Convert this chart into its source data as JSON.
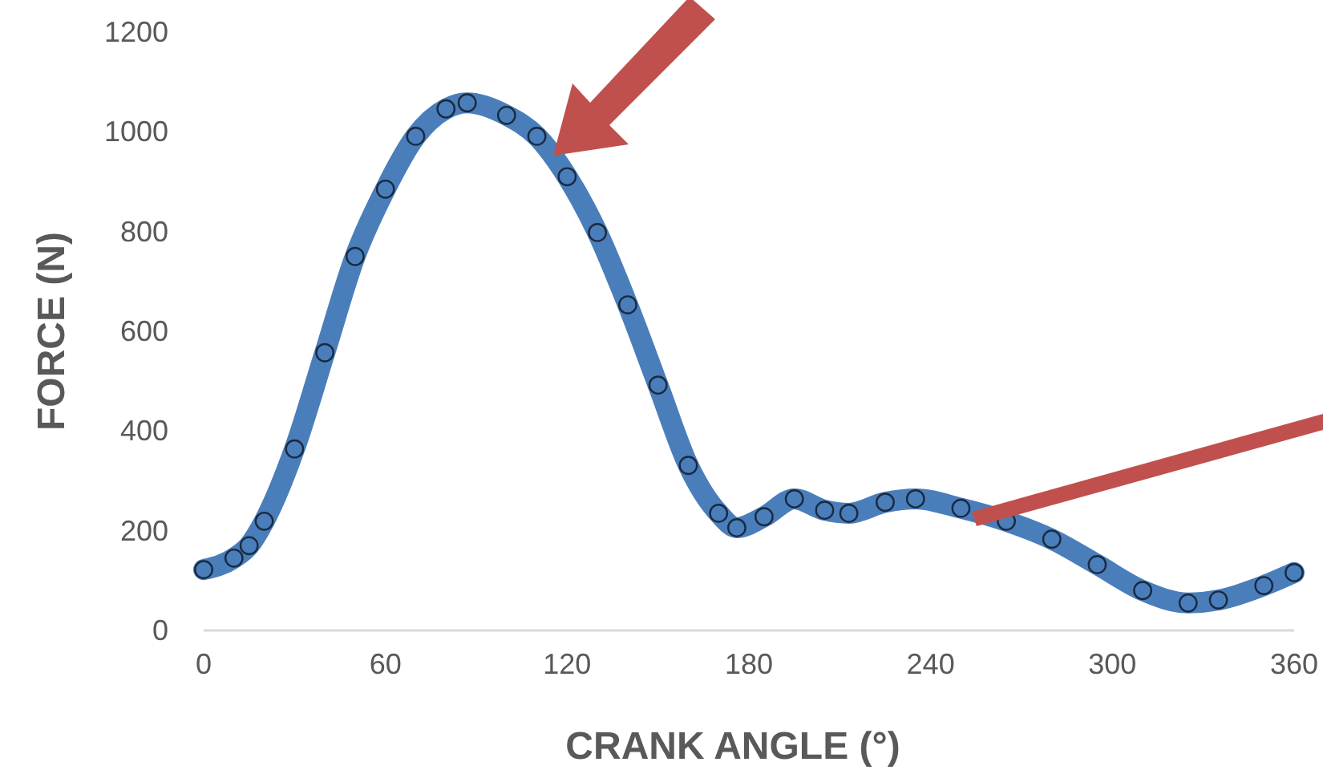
{
  "chart_data": {
    "type": "line",
    "xlabel": "CRANK ANGLE (°)",
    "ylabel": "FORCE (N)",
    "xlim": [
      0,
      360
    ],
    "xticks": [
      0,
      60,
      120,
      180,
      240,
      300,
      360
    ],
    "ylim": [
      0,
      1200
    ],
    "yticks": [
      0,
      200,
      400,
      600,
      800,
      1000,
      1200
    ],
    "grid": false,
    "marker": "circle",
    "series": [
      {
        "color": "#4a7ebb",
        "x": [
          0,
          10,
          15,
          20,
          30,
          40,
          50,
          60,
          70,
          80,
          87,
          100,
          110,
          120,
          130,
          140,
          150,
          160,
          170,
          176,
          185,
          195,
          205,
          213,
          225,
          235,
          250,
          265,
          280,
          295,
          310,
          325,
          335,
          350,
          360
        ],
        "values": [
          122,
          145,
          170,
          219,
          364,
          557,
          750,
          885,
          991,
          1046,
          1058,
          1033,
          991,
          910,
          798,
          653,
          492,
          331,
          235,
          206,
          228,
          264,
          241,
          235,
          257,
          264,
          245,
          219,
          183,
          132,
          80,
          55,
          61,
          90,
          116
        ]
      }
    ]
  }
}
